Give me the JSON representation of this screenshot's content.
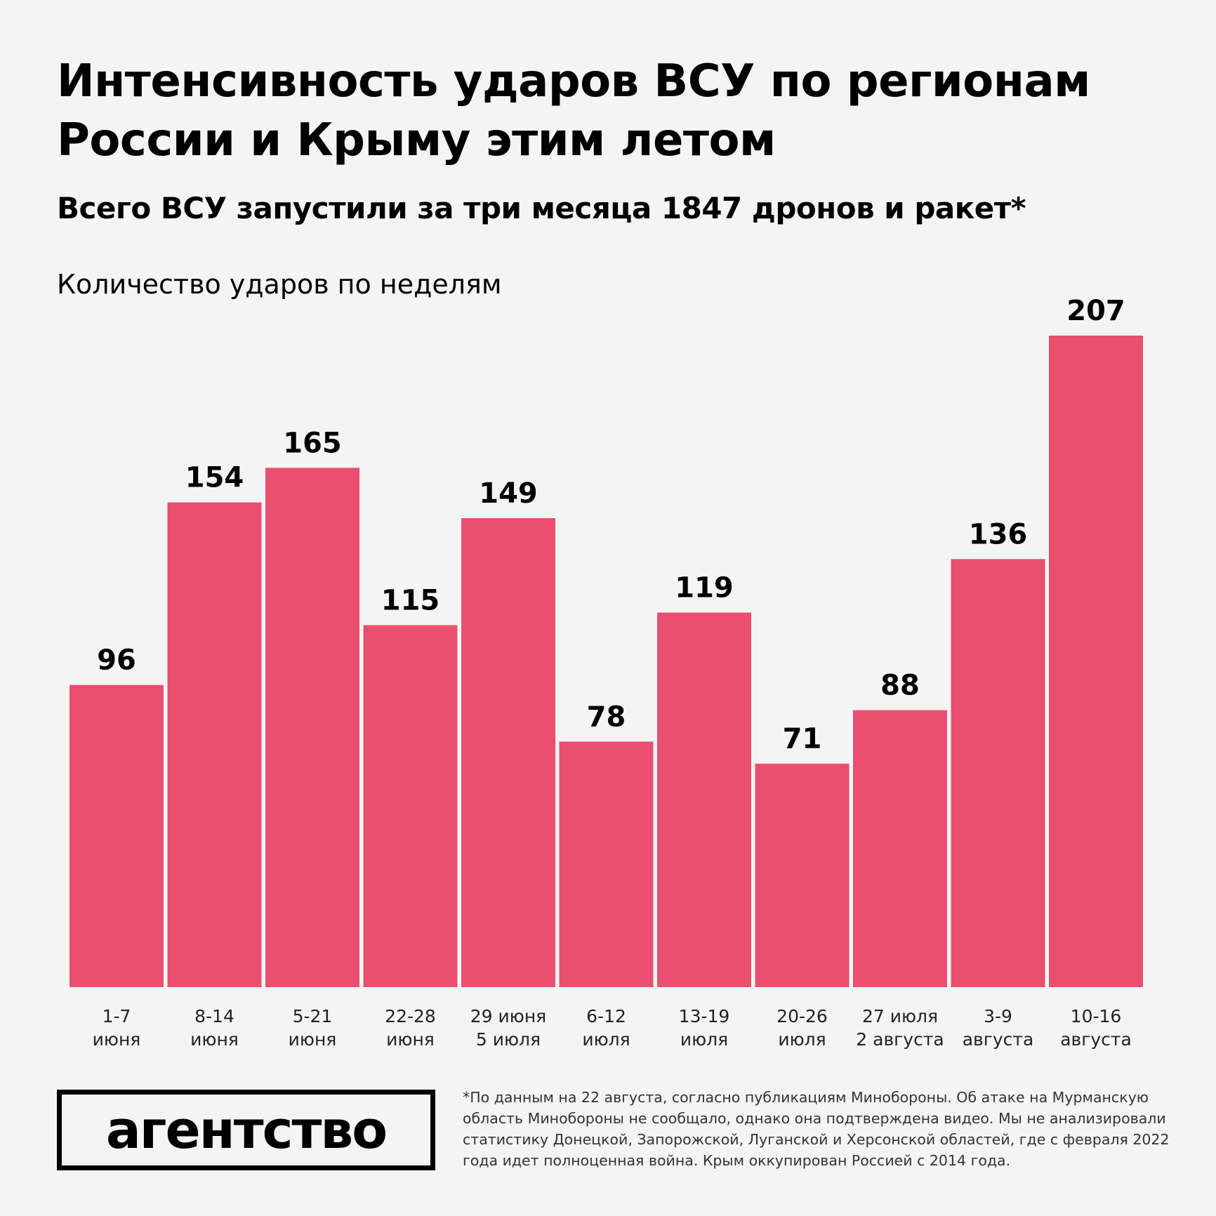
{
  "title": "Интенсивность ударов ВСУ по регионам России и Крыму этим летом",
  "subtitle": "Всего ВСУ запустили за три месяца 1847 дронов и ракет*",
  "logo": "агентство",
  "footnote": "*По данным на 22 августа, согласно публикациям Минобороны. Об атаке на Мурманскую область Минобороны не сообщало, однако она подтверждена видео. Мы не анализировали статистику Донецкой, Запорожской, Луганской и Херсонской областей, где с февраля 2022 года идет полноценная война. Крым оккупирован Россией с 2014 года.",
  "chart_data": {
    "type": "bar",
    "title": "Количество ударов по неделям",
    "categories": [
      [
        "1-7",
        "июня"
      ],
      [
        "8-14",
        "июня"
      ],
      [
        "5-21",
        "июня"
      ],
      [
        "22-28",
        "июня"
      ],
      [
        "29 июня",
        "5 июля"
      ],
      [
        "6-12",
        "июля"
      ],
      [
        "13-19",
        "июля"
      ],
      [
        "20-26",
        "июля"
      ],
      [
        "27 июля",
        "2 августа"
      ],
      [
        "3-9",
        "августа"
      ],
      [
        "10-16",
        "августа"
      ]
    ],
    "values": [
      96,
      154,
      165,
      115,
      149,
      78,
      119,
      71,
      88,
      136,
      207
    ],
    "ylim": [
      0,
      207
    ],
    "grid": false,
    "bar_color": "#e94f6e",
    "data_labels": true
  }
}
